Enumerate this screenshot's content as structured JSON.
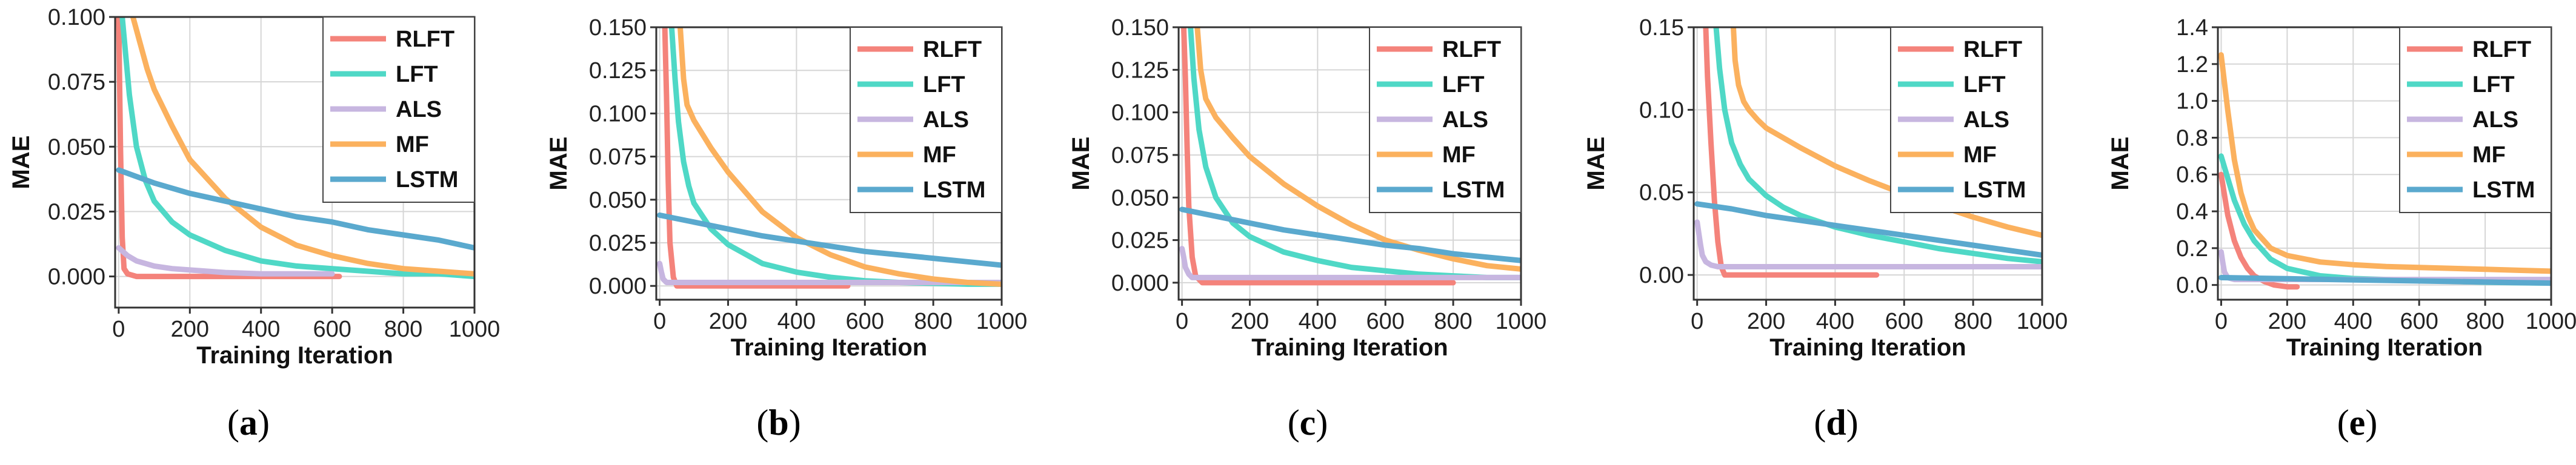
{
  "figure": {
    "series_colors": {
      "RLFT": "#f4837b",
      "LFT": "#4fd8c6",
      "ALS": "#c7b6e0",
      "MF": "#fbb15e",
      "LSTM": "#5aa9ce"
    }
  },
  "chart_data": [
    {
      "type": "line",
      "panel_label": "a",
      "xlabel": "Training Iteration",
      "ylabel": "MAE",
      "xlim": [
        -10,
        1000
      ],
      "ylim": [
        -0.012,
        0.1
      ],
      "xticks": [
        0,
        200,
        400,
        600,
        800,
        1000
      ],
      "xtick_labels": [
        "0",
        "200",
        "400",
        "600",
        "800",
        "1000"
      ],
      "yticks": [
        0.0,
        0.025,
        0.05,
        0.075,
        0.1
      ],
      "ytick_labels": [
        "0.000",
        "0.025",
        "0.050",
        "0.075",
        "0.100"
      ],
      "grid": true,
      "legend_position": "top-right",
      "series": [
        {
          "name": "RLFT",
          "x": [
            0,
            5,
            10,
            15,
            25,
            50,
            100,
            200,
            300,
            400,
            500,
            620
          ],
          "y": [
            0.1,
            0.05,
            0.015,
            0.003,
            0.001,
            0.0,
            0.0,
            0.0,
            0.0,
            0.0,
            0.0,
            0.0
          ]
        },
        {
          "name": "LFT",
          "x": [
            10,
            20,
            30,
            50,
            75,
            100,
            150,
            200,
            300,
            400,
            500,
            600,
            700,
            800,
            900,
            1000
          ],
          "y": [
            0.1,
            0.085,
            0.07,
            0.05,
            0.037,
            0.029,
            0.021,
            0.016,
            0.01,
            0.006,
            0.004,
            0.003,
            0.002,
            0.001,
            0.001,
            0.0
          ]
        },
        {
          "name": "ALS",
          "x": [
            0,
            25,
            50,
            100,
            150,
            200,
            300,
            400,
            500,
            600
          ],
          "y": [
            0.011,
            0.008,
            0.006,
            0.004,
            0.003,
            0.0025,
            0.0015,
            0.001,
            0.001,
            0.001
          ]
        },
        {
          "name": "MF",
          "x": [
            40,
            60,
            80,
            100,
            150,
            200,
            300,
            400,
            500,
            600,
            700,
            800,
            900,
            1000
          ],
          "y": [
            0.1,
            0.09,
            0.08,
            0.072,
            0.058,
            0.045,
            0.03,
            0.019,
            0.012,
            0.008,
            0.005,
            0.003,
            0.002,
            0.001
          ]
        },
        {
          "name": "LSTM",
          "x": [
            0,
            100,
            200,
            300,
            400,
            500,
            600,
            700,
            800,
            900,
            1000
          ],
          "y": [
            0.041,
            0.036,
            0.032,
            0.029,
            0.026,
            0.023,
            0.021,
            0.018,
            0.016,
            0.014,
            0.011
          ]
        }
      ]
    },
    {
      "type": "line",
      "panel_label": "b",
      "xlabel": "Training Iteration",
      "ylabel": "MAE",
      "xlim": [
        -10,
        1000
      ],
      "ylim": [
        -0.008,
        0.15
      ],
      "xticks": [
        0,
        200,
        400,
        600,
        800,
        1000
      ],
      "xtick_labels": [
        "0",
        "200",
        "400",
        "600",
        "800",
        "1000"
      ],
      "yticks": [
        0.0,
        0.025,
        0.05,
        0.075,
        0.1,
        0.125,
        0.15
      ],
      "ytick_labels": [
        "0.000",
        "0.025",
        "0.050",
        "0.075",
        "0.100",
        "0.125",
        "0.150"
      ],
      "grid": true,
      "legend_position": "top-right",
      "series": [
        {
          "name": "RLFT",
          "x": [
            15,
            20,
            25,
            30,
            40,
            50,
            100,
            200,
            300,
            400,
            550
          ],
          "y": [
            0.15,
            0.11,
            0.06,
            0.025,
            0.005,
            0.0,
            0.0,
            0.0,
            0.0,
            0.0,
            0.0
          ]
        },
        {
          "name": "LFT",
          "x": [
            35,
            45,
            55,
            70,
            85,
            100,
            150,
            200,
            300,
            400,
            500,
            600,
            700,
            800,
            900,
            1000
          ],
          "y": [
            0.15,
            0.12,
            0.095,
            0.072,
            0.058,
            0.048,
            0.033,
            0.024,
            0.013,
            0.008,
            0.005,
            0.003,
            0.002,
            0.0015,
            0.001,
            0.001
          ]
        },
        {
          "name": "ALS",
          "x": [
            0,
            5,
            10,
            20,
            50,
            100,
            200,
            400,
            600,
            800,
            1000
          ],
          "y": [
            0.013,
            0.008,
            0.004,
            0.002,
            0.002,
            0.002,
            0.002,
            0.002,
            0.002,
            0.002,
            0.002
          ]
        },
        {
          "name": "MF",
          "x": [
            60,
            70,
            80,
            100,
            150,
            200,
            300,
            400,
            500,
            600,
            700,
            800,
            900,
            1000
          ],
          "y": [
            0.15,
            0.12,
            0.105,
            0.096,
            0.08,
            0.066,
            0.043,
            0.028,
            0.018,
            0.011,
            0.007,
            0.004,
            0.002,
            0.001
          ]
        },
        {
          "name": "LSTM",
          "x": [
            0,
            100,
            200,
            300,
            400,
            500,
            600,
            700,
            800,
            900,
            1000
          ],
          "y": [
            0.041,
            0.037,
            0.033,
            0.029,
            0.026,
            0.023,
            0.02,
            0.018,
            0.016,
            0.014,
            0.012
          ]
        }
      ]
    },
    {
      "type": "line",
      "panel_label": "c",
      "xlabel": "Training Iteration",
      "ylabel": "MAE",
      "xlim": [
        -10,
        1000
      ],
      "ylim": [
        -0.01,
        0.15
      ],
      "xticks": [
        0,
        200,
        400,
        600,
        800,
        1000
      ],
      "xtick_labels": [
        "0",
        "200",
        "400",
        "600",
        "800",
        "1000"
      ],
      "yticks": [
        0.0,
        0.025,
        0.05,
        0.075,
        0.1,
        0.125,
        0.15
      ],
      "ytick_labels": [
        "0.000",
        "0.025",
        "0.050",
        "0.075",
        "0.100",
        "0.125",
        "0.150"
      ],
      "grid": true,
      "legend_position": "top-right",
      "series": [
        {
          "name": "RLFT",
          "x": [
            5,
            10,
            15,
            20,
            30,
            40,
            60,
            100,
            200,
            400,
            600,
            800
          ],
          "y": [
            0.15,
            0.12,
            0.08,
            0.045,
            0.015,
            0.004,
            0.0,
            0.0,
            0.0,
            0.0,
            0.0,
            0.0
          ]
        },
        {
          "name": "LFT",
          "x": [
            25,
            35,
            50,
            70,
            100,
            150,
            200,
            300,
            400,
            500,
            600,
            700,
            800,
            900,
            1000
          ],
          "y": [
            0.15,
            0.12,
            0.09,
            0.068,
            0.05,
            0.035,
            0.027,
            0.018,
            0.013,
            0.009,
            0.007,
            0.005,
            0.004,
            0.003,
            0.003
          ]
        },
        {
          "name": "ALS",
          "x": [
            0,
            5,
            10,
            20,
            30,
            50,
            100,
            200,
            400,
            600,
            800,
            1000
          ],
          "y": [
            0.02,
            0.015,
            0.009,
            0.005,
            0.003,
            0.003,
            0.003,
            0.003,
            0.003,
            0.003,
            0.003,
            0.003
          ]
        },
        {
          "name": "MF",
          "x": [
            45,
            55,
            70,
            100,
            150,
            200,
            300,
            400,
            500,
            600,
            700,
            800,
            900,
            1000
          ],
          "y": [
            0.15,
            0.125,
            0.108,
            0.097,
            0.085,
            0.074,
            0.058,
            0.045,
            0.034,
            0.025,
            0.019,
            0.014,
            0.01,
            0.008
          ]
        },
        {
          "name": "LSTM",
          "x": [
            0,
            100,
            200,
            300,
            400,
            500,
            600,
            700,
            800,
            900,
            1000
          ],
          "y": [
            0.043,
            0.039,
            0.035,
            0.031,
            0.028,
            0.025,
            0.022,
            0.02,
            0.017,
            0.015,
            0.013
          ]
        }
      ]
    },
    {
      "type": "line",
      "panel_label": "d",
      "xlabel": "Training Iteration",
      "ylabel": "MAE",
      "xlim": [
        -10,
        1000
      ],
      "ylim": [
        -0.015,
        0.15
      ],
      "xticks": [
        0,
        200,
        400,
        600,
        800,
        1000
      ],
      "xtick_labels": [
        "0",
        "200",
        "400",
        "600",
        "800",
        "1000"
      ],
      "yticks": [
        0.0,
        0.05,
        0.1,
        0.15
      ],
      "ytick_labels": [
        "0.00",
        "0.05",
        "0.10",
        "0.15"
      ],
      "grid": true,
      "legend_position": "top-right",
      "series": [
        {
          "name": "RLFT",
          "x": [
            25,
            30,
            40,
            50,
            60,
            70,
            80,
            100,
            200,
            300,
            400,
            520
          ],
          "y": [
            0.15,
            0.12,
            0.08,
            0.045,
            0.02,
            0.005,
            0.0,
            0.0,
            0.0,
            0.0,
            0.0,
            0.0
          ]
        },
        {
          "name": "LFT",
          "x": [
            55,
            65,
            80,
            100,
            125,
            150,
            200,
            250,
            300,
            400,
            500,
            600,
            700,
            800,
            900,
            1000
          ],
          "y": [
            0.15,
            0.125,
            0.1,
            0.08,
            0.067,
            0.058,
            0.048,
            0.041,
            0.036,
            0.029,
            0.024,
            0.02,
            0.016,
            0.013,
            0.01,
            0.008
          ]
        },
        {
          "name": "ALS",
          "x": [
            0,
            5,
            10,
            15,
            25,
            40,
            60,
            100,
            200,
            400,
            600,
            800,
            1000
          ],
          "y": [
            0.032,
            0.025,
            0.018,
            0.012,
            0.008,
            0.006,
            0.005,
            0.005,
            0.005,
            0.005,
            0.005,
            0.005,
            0.005
          ]
        },
        {
          "name": "MF",
          "x": [
            105,
            110,
            120,
            135,
            150,
            175,
            200,
            300,
            400,
            500,
            600,
            700,
            800,
            900,
            1000
          ],
          "y": [
            0.15,
            0.13,
            0.115,
            0.105,
            0.1,
            0.094,
            0.089,
            0.077,
            0.066,
            0.057,
            0.049,
            0.042,
            0.035,
            0.029,
            0.024
          ]
        },
        {
          "name": "LSTM",
          "x": [
            0,
            100,
            200,
            300,
            400,
            500,
            600,
            700,
            800,
            900,
            1000
          ],
          "y": [
            0.043,
            0.04,
            0.036,
            0.033,
            0.03,
            0.027,
            0.024,
            0.021,
            0.018,
            0.015,
            0.012
          ]
        }
      ]
    },
    {
      "type": "line",
      "panel_label": "e",
      "xlabel": "Training Iteration",
      "ylabel": "MAE",
      "xlim": [
        -10,
        1000
      ],
      "ylim": [
        -0.08,
        1.4
      ],
      "xticks": [
        0,
        200,
        400,
        600,
        800,
        1000
      ],
      "xtick_labels": [
        "0",
        "200",
        "400",
        "600",
        "800",
        "1000"
      ],
      "yticks": [
        0.0,
        0.2,
        0.4,
        0.6,
        0.8,
        1.0,
        1.2,
        1.4
      ],
      "ytick_labels": [
        "0.0",
        "0.2",
        "0.4",
        "0.6",
        "0.8",
        "1.0",
        "1.2",
        "1.4"
      ],
      "grid": true,
      "legend_position": "top-right",
      "series": [
        {
          "name": "RLFT",
          "x": [
            0,
            20,
            40,
            60,
            80,
            100,
            130,
            160,
            200,
            230
          ],
          "y": [
            0.6,
            0.38,
            0.24,
            0.15,
            0.09,
            0.05,
            0.02,
            0.0,
            -0.01,
            -0.01
          ]
        },
        {
          "name": "LFT",
          "x": [
            0,
            20,
            40,
            70,
            100,
            150,
            200,
            300,
            400,
            500,
            600,
            700,
            800,
            900,
            1000
          ],
          "y": [
            0.7,
            0.58,
            0.46,
            0.33,
            0.24,
            0.14,
            0.09,
            0.05,
            0.035,
            0.03,
            0.025,
            0.02,
            0.015,
            0.012,
            0.01
          ]
        },
        {
          "name": "ALS",
          "x": [
            0,
            5,
            10,
            20,
            40,
            100,
            200,
            400,
            600,
            800,
            1000
          ],
          "y": [
            0.18,
            0.12,
            0.07,
            0.04,
            0.03,
            0.03,
            0.03,
            0.03,
            0.03,
            0.03,
            0.03
          ]
        },
        {
          "name": "MF",
          "x": [
            0,
            20,
            40,
            60,
            80,
            100,
            150,
            200,
            300,
            400,
            500,
            600,
            700,
            800,
            900,
            1000
          ],
          "y": [
            1.25,
            0.95,
            0.68,
            0.5,
            0.38,
            0.3,
            0.2,
            0.16,
            0.125,
            0.11,
            0.1,
            0.095,
            0.09,
            0.085,
            0.08,
            0.075
          ]
        },
        {
          "name": "LSTM",
          "x": [
            0,
            100,
            200,
            300,
            400,
            500,
            600,
            700,
            800,
            900,
            1000
          ],
          "y": [
            0.04,
            0.037,
            0.034,
            0.031,
            0.028,
            0.025,
            0.022,
            0.019,
            0.016,
            0.013,
            0.01
          ]
        }
      ]
    }
  ]
}
